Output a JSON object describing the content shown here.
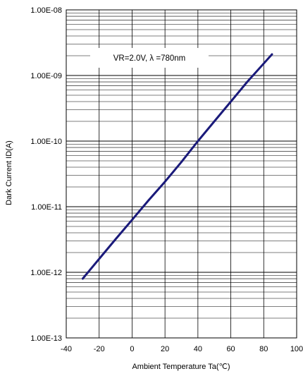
{
  "chart_data": {
    "type": "line",
    "title": "",
    "annotation": "VR=2.0V, λ =780nm",
    "xlabel": "Ambient Temperature Ta(℃)",
    "ylabel": "Dark Current ID(A)",
    "xlim": [
      -40,
      100
    ],
    "ylim": [
      1e-13,
      1e-08
    ],
    "yscale": "log",
    "grid": true,
    "x_ticks": [
      -40,
      -20,
      0,
      20,
      40,
      60,
      80,
      100
    ],
    "x_tick_labels": [
      "-40",
      "-20",
      "0",
      "20",
      "40",
      "60",
      "80",
      "100"
    ],
    "y_ticks": [
      1e-13,
      1e-12,
      1e-11,
      1e-10,
      1e-09,
      1e-08
    ],
    "y_tick_labels": [
      "1.00E-13",
      "1.00E-12",
      "1.00E-11",
      "1.00E-10",
      "1.00E-09",
      "1.00E-08"
    ],
    "line_color": "#1a1a7a",
    "series": [
      {
        "name": "",
        "x": [
          -30,
          -20,
          -10,
          0,
          10,
          20,
          30,
          40,
          50,
          60,
          70,
          85
        ],
        "y": [
          8e-13,
          1.6e-12,
          3.2e-12,
          6.3e-12,
          1.25e-11,
          2.4e-11,
          4.8e-11,
          1e-10,
          2e-10,
          4e-10,
          8e-10,
          2.1e-09
        ]
      }
    ]
  }
}
